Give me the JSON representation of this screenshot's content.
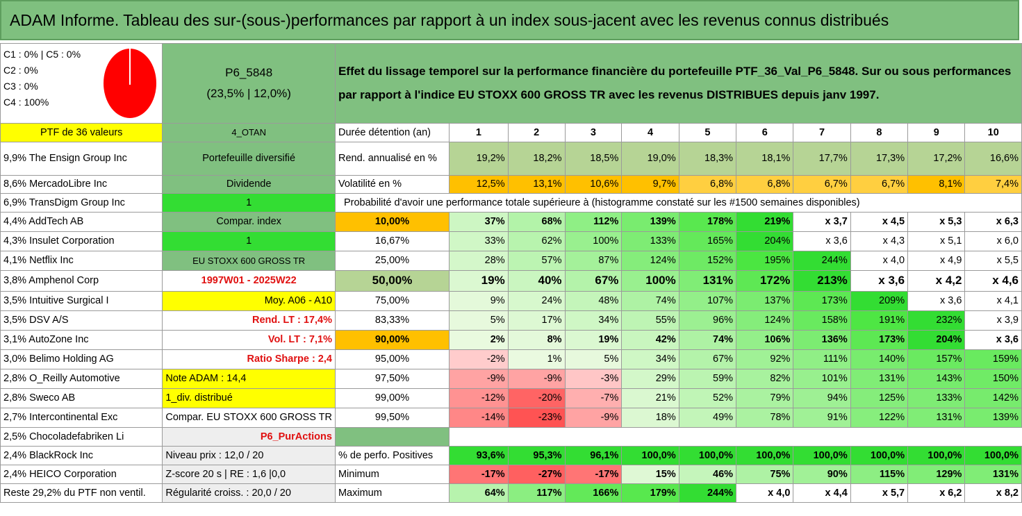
{
  "title": "ADAM Informe. Tableau des sur-(sous-)performances par rapport à un index sous-jacent avec les revenus connus distribués",
  "legend": {
    "line1": "C1 : 0% | C5 : 0%",
    "line2": "C2 : 0%",
    "line3": "C3 : 0%",
    "line4": "C4 : 100%",
    "pie_color": "#ff0000"
  },
  "fund": {
    "name": "P6_5848",
    "stats": "(23,5% | 12,0%)"
  },
  "description": "Effet du lissage temporel sur la performance financière du portefeuille PTF_36_Val_P6_5848. Sur ou sous performances par rapport à l'indice EU STOXX 600 GROSS TR avec les revenus DISTRIBUES depuis janv 1997.",
  "ptf_label": "PTF de 36 valeurs",
  "holdings": [
    "9,9% The Ensign Group Inc",
    "8,6% MercadoLibre Inc",
    "6,9% TransDigm Group Inc",
    "4,4% AddTech AB",
    "4,3% Insulet Corporation",
    "4,1% Netflix Inc",
    "3,8% Amphenol Corp",
    "3,5% Intuitive Surgical I",
    "3,5% DSV A/S",
    "3,1% AutoZone Inc",
    "3,0% Belimo Holding AG",
    "2,8% O_Reilly Automotive",
    "2,8% Sweco AB",
    "2,7% Intercontinental Exc",
    "2,5% Chocoladefabriken Li",
    "2,4% BlackRock Inc",
    "2,4% HEICO Corporation",
    "Reste 29,2% du PTF non ventil."
  ],
  "info": {
    "otan": "4_OTAN",
    "portfolio_type": "Portefeuille diversifié",
    "dividende": "Dividende",
    "one_a": "1",
    "compar_index": "Compar. index",
    "one_b": "1",
    "index_name": "EU STOXX 600 GROSS TR",
    "period": "1997W01 - 2025W22",
    "moy": "Moy. A06 - A10",
    "rend_lt": "Rend. LT : 17,4%",
    "vol_lt": "Vol. LT : 7,1%",
    "sharpe": "Ratio Sharpe : 2,4",
    "note": "Note ADAM : 14,4",
    "div": "1_div. distribué",
    "compar_full": "Compar. EU STOXX 600 GROSS TR",
    "puractions": "P6_PurActions",
    "niveau_prix": "Niveau prix : 12,0 / 20",
    "zscore": "Z-score 20 s | RE : 1,6 |0,0",
    "regularite": "Régularité croiss. : 20,0 / 20"
  },
  "header": {
    "label": "Durée détention (an)",
    "years": [
      "1",
      "2",
      "3",
      "4",
      "5",
      "6",
      "7",
      "8",
      "9",
      "10"
    ]
  },
  "rend": {
    "label": "Rend. annualisé en %",
    "values": [
      "19,2%",
      "18,2%",
      "18,5%",
      "19,0%",
      "18,3%",
      "18,1%",
      "17,7%",
      "17,3%",
      "17,2%",
      "16,6%"
    ]
  },
  "vol": {
    "label": "Volatilité en %",
    "values": [
      "12,5%",
      "13,1%",
      "10,6%",
      "9,7%",
      "6,8%",
      "6,8%",
      "6,7%",
      "6,7%",
      "8,1%",
      "7,4%"
    ]
  },
  "proba_title": "Probabilité d'avoir une performance totale supérieure à (histogramme constaté sur les #1500 semaines disponibles)",
  "proba_rows": [
    {
      "threshold": "10,00%",
      "values": [
        "37%",
        "68%",
        "112%",
        "139%",
        "178%",
        "219%",
        "x 3,7",
        "x 4,5",
        "x 5,3",
        "x 6,3"
      ]
    },
    {
      "threshold": "16,67%",
      "values": [
        "33%",
        "62%",
        "100%",
        "133%",
        "165%",
        "204%",
        "x 3,6",
        "x 4,3",
        "x 5,1",
        "x 6,0"
      ]
    },
    {
      "threshold": "25,00%",
      "values": [
        "28%",
        "57%",
        "87%",
        "124%",
        "152%",
        "195%",
        "244%",
        "x 4,0",
        "x 4,9",
        "x 5,5"
      ]
    },
    {
      "threshold": "50,00%",
      "values": [
        "19%",
        "40%",
        "67%",
        "100%",
        "131%",
        "172%",
        "213%",
        "x 3,6",
        "x 4,2",
        "x 4,6"
      ]
    },
    {
      "threshold": "75,00%",
      "values": [
        "9%",
        "24%",
        "48%",
        "74%",
        "107%",
        "137%",
        "173%",
        "209%",
        "x 3,6",
        "x 4,1"
      ]
    },
    {
      "threshold": "83,33%",
      "values": [
        "5%",
        "17%",
        "34%",
        "55%",
        "96%",
        "124%",
        "158%",
        "191%",
        "232%",
        "x 3,9"
      ]
    },
    {
      "threshold": "90,00%",
      "values": [
        "2%",
        "8%",
        "19%",
        "42%",
        "74%",
        "106%",
        "136%",
        "173%",
        "204%",
        "x 3,6"
      ]
    },
    {
      "threshold": "95,00%",
      "values": [
        "-2%",
        "1%",
        "5%",
        "34%",
        "67%",
        "92%",
        "111%",
        "140%",
        "157%",
        "159%"
      ]
    },
    {
      "threshold": "97,50%",
      "values": [
        "-9%",
        "-9%",
        "-3%",
        "29%",
        "59%",
        "82%",
        "101%",
        "131%",
        "143%",
        "150%"
      ]
    },
    {
      "threshold": "99,00%",
      "values": [
        "-12%",
        "-20%",
        "-7%",
        "21%",
        "52%",
        "79%",
        "94%",
        "125%",
        "133%",
        "142%"
      ]
    },
    {
      "threshold": "99,50%",
      "values": [
        "-14%",
        "-23%",
        "-9%",
        "18%",
        "49%",
        "78%",
        "91%",
        "122%",
        "131%",
        "139%"
      ]
    }
  ],
  "pos": {
    "label": "% de perfo. Positives",
    "values": [
      "93,6%",
      "95,3%",
      "96,1%",
      "100,0%",
      "100,0%",
      "100,0%",
      "100,0%",
      "100,0%",
      "100,0%",
      "100,0%"
    ]
  },
  "min": {
    "label": "Minimum",
    "values": [
      "-17%",
      "-27%",
      "-17%",
      "15%",
      "46%",
      "75%",
      "90%",
      "115%",
      "129%",
      "131%"
    ]
  },
  "max": {
    "label": "Maximum",
    "values": [
      "64%",
      "117%",
      "166%",
      "179%",
      "244%",
      "x 4,0",
      "x 4,4",
      "x 5,7",
      "x 6,2",
      "x 8,2"
    ]
  }
}
